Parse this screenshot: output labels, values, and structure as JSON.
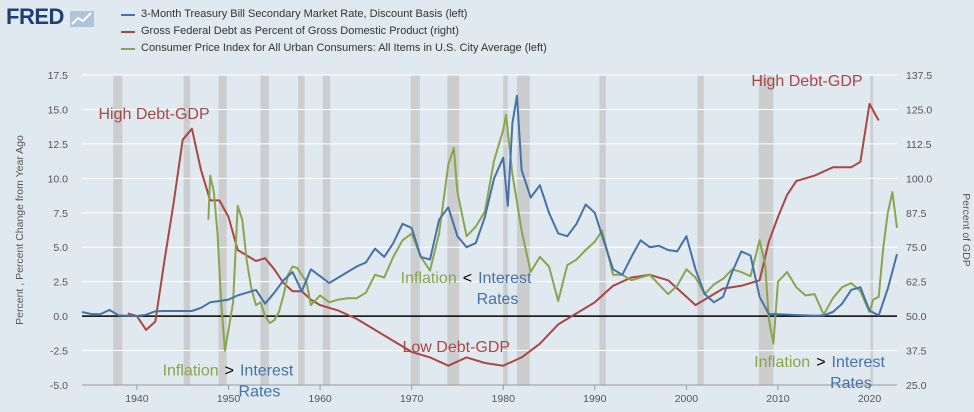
{
  "brand": {
    "logo_text": "FRED"
  },
  "colors": {
    "background": "#e1e9f0",
    "plot": "#e1e9f0",
    "recession": "#c8c8c8",
    "tbill": "#4572a7",
    "debt": "#aa4643",
    "cpi": "#89a54e",
    "zero_line": "#000000"
  },
  "chart_data": {
    "type": "line",
    "xlim": [
      1934,
      2023
    ],
    "ylim_left": [
      -5.0,
      17.5
    ],
    "ylim_right": [
      25.0,
      137.5
    ],
    "x_ticks": [
      "1940",
      "1950",
      "1960",
      "1970",
      "1980",
      "1990",
      "2000",
      "2010",
      "2020"
    ],
    "left_ticks": [
      "17.5",
      "15.0",
      "12.5",
      "10.0",
      "7.5",
      "5.0",
      "2.5",
      "0.0",
      "-2.5",
      "-5.0"
    ],
    "right_ticks": [
      "137.5",
      "125.0",
      "112.5",
      "100.0",
      "87.5",
      "75.0",
      "62.5",
      "50.0",
      "37.5",
      "25.0"
    ],
    "left_label": "Percent , Percent Change from Year Ago",
    "right_label": "Percent of GDP",
    "recessions": [
      [
        1937.4,
        1938.4
      ],
      [
        1945.1,
        1945.8
      ],
      [
        1948.9,
        1949.8
      ],
      [
        1953.5,
        1954.4
      ],
      [
        1957.6,
        1958.3
      ],
      [
        1960.3,
        1961.1
      ],
      [
        1969.9,
        1970.9
      ],
      [
        1973.9,
        1975.2
      ],
      [
        1980.0,
        1980.5
      ],
      [
        1981.5,
        1982.9
      ],
      [
        1990.5,
        1991.2
      ],
      [
        2001.2,
        2001.9
      ],
      [
        2007.9,
        2009.5
      ],
      [
        2020.1,
        2020.4
      ]
    ],
    "series": [
      {
        "name": "3-Month Treasury Bill Secondary Market Rate, Discount Basis (left)",
        "axis": "left",
        "x": [
          1934,
          1935,
          1936,
          1937,
          1938,
          1939,
          1940,
          1941,
          1942,
          1943,
          1944,
          1945,
          1946,
          1947,
          1948,
          1949,
          1950,
          1951,
          1952,
          1953,
          1954,
          1955,
          1956,
          1957,
          1958,
          1959,
          1960,
          1961,
          1962,
          1963,
          1964,
          1965,
          1966,
          1967,
          1968,
          1969,
          1970,
          1971,
          1972,
          1973,
          1974,
          1975,
          1976,
          1977,
          1978,
          1979,
          1980,
          1980.5,
          1981,
          1981.5,
          1982,
          1983,
          1984,
          1985,
          1986,
          1987,
          1988,
          1989,
          1990,
          1991,
          1992,
          1993,
          1994,
          1995,
          1996,
          1997,
          1998,
          1999,
          2000,
          2001,
          2002,
          2003,
          2004,
          2005,
          2006,
          2007,
          2008,
          2009,
          2010,
          2012,
          2014,
          2015,
          2016,
          2017,
          2018,
          2019,
          2020,
          2021,
          2022,
          2023
        ],
        "y": [
          0.3,
          0.15,
          0.14,
          0.45,
          0.05,
          0.02,
          0.01,
          0.1,
          0.35,
          0.37,
          0.37,
          0.37,
          0.37,
          0.6,
          1.0,
          1.1,
          1.2,
          1.5,
          1.7,
          1.9,
          0.9,
          1.7,
          2.6,
          3.2,
          1.8,
          3.4,
          2.9,
          2.4,
          2.8,
          3.2,
          3.6,
          3.9,
          4.9,
          4.3,
          5.3,
          6.7,
          6.4,
          4.3,
          4.1,
          7.0,
          7.9,
          5.8,
          5.0,
          5.3,
          7.2,
          10.0,
          11.5,
          8.0,
          14.0,
          16.0,
          10.6,
          8.6,
          9.5,
          7.5,
          6.0,
          5.8,
          6.7,
          8.1,
          7.5,
          5.4,
          3.4,
          3.0,
          4.3,
          5.5,
          5.0,
          5.1,
          4.8,
          4.7,
          5.8,
          3.4,
          1.6,
          1.0,
          1.4,
          3.2,
          4.7,
          4.4,
          1.4,
          0.15,
          0.13,
          0.08,
          0.03,
          0.05,
          0.3,
          0.9,
          1.9,
          2.1,
          0.4,
          0.05,
          2.0,
          4.5
        ]
      },
      {
        "name": "Gross Federal Debt as Percent of Gross Domestic Product (right)",
        "axis": "right",
        "x": [
          1939,
          1940,
          1941,
          1942,
          1943,
          1944,
          1945,
          1946,
          1947,
          1948,
          1949,
          1950,
          1951,
          1952,
          1953,
          1954,
          1955,
          1956,
          1957,
          1958,
          1959,
          1960,
          1962,
          1964,
          1966,
          1968,
          1970,
          1972,
          1974,
          1976,
          1978,
          1980,
          1982,
          1984,
          1986,
          1988,
          1990,
          1992,
          1994,
          1996,
          1998,
          2000,
          2001,
          2002,
          2004,
          2006,
          2008,
          2009,
          2010,
          2011,
          2012,
          2014,
          2016,
          2018,
          2019,
          2020,
          2021
        ],
        "y": [
          51,
          50,
          45,
          48,
          70,
          91,
          114,
          118,
          103,
          92,
          92,
          86,
          74,
          72,
          70,
          71,
          67,
          62,
          59,
          59,
          56,
          54,
          52,
          49,
          45,
          41,
          37,
          35,
          32,
          35,
          33,
          32,
          35,
          40,
          47,
          51,
          55,
          61,
          64,
          65,
          63,
          57,
          54,
          56,
          60,
          61,
          63,
          77,
          86,
          94,
          99,
          101,
          104,
          104,
          106,
          127,
          121
        ]
      },
      {
        "name": "Consumer Price Index for All Urban Consumers: All Items in U.S. City Average (left)",
        "axis": "left",
        "x": [
          1947.8,
          1948.0,
          1948.4,
          1948.8,
          1949.2,
          1949.6,
          1950.0,
          1950.5,
          1951.0,
          1951.5,
          1952.0,
          1952.5,
          1953.0,
          1953.5,
          1954.0,
          1954.5,
          1955.0,
          1955.5,
          1956.0,
          1956.5,
          1957.0,
          1957.5,
          1958.0,
          1958.5,
          1959.0,
          1960.0,
          1961.0,
          1962.0,
          1963.0,
          1964.0,
          1965.0,
          1966.0,
          1967.0,
          1968.0,
          1969.0,
          1970.0,
          1971.0,
          1972.0,
          1973.0,
          1974.0,
          1974.6,
          1975.0,
          1976.0,
          1977.0,
          1978.0,
          1979.0,
          1980.0,
          1980.3,
          1981.0,
          1982.0,
          1983.0,
          1984.0,
          1985.0,
          1986.0,
          1987.0,
          1988.0,
          1989.0,
          1990.0,
          1990.8,
          1992.0,
          1993.0,
          1994.0,
          1995.0,
          1996.0,
          1997.0,
          1998.0,
          1999.0,
          2000.0,
          2001.0,
          2002.0,
          2003.0,
          2004.0,
          2005.0,
          2006.0,
          2007.0,
          2008.0,
          2008.6,
          2009.0,
          2009.5,
          2010.0,
          2011.0,
          2012.0,
          2013.0,
          2014.0,
          2015.0,
          2016.0,
          2017.0,
          2018.0,
          2019.0,
          2020.0,
          2020.4,
          2021.0,
          2021.5,
          2022.0,
          2022.5,
          2023.0
        ],
        "y": [
          7.0,
          10.2,
          9.0,
          6.0,
          1.0,
          -2.5,
          -1.0,
          1.0,
          8.0,
          7.0,
          4.0,
          2.0,
          0.8,
          1.0,
          0.0,
          -0.5,
          -0.3,
          0.3,
          1.5,
          3.0,
          3.6,
          3.5,
          3.0,
          2.5,
          0.8,
          1.5,
          1.0,
          1.2,
          1.3,
          1.3,
          1.7,
          3.0,
          2.8,
          4.3,
          5.5,
          6.0,
          4.3,
          3.3,
          6.0,
          11.0,
          12.2,
          9.0,
          5.8,
          6.5,
          7.6,
          11.3,
          13.5,
          14.6,
          10.3,
          6.2,
          3.2,
          4.3,
          3.6,
          1.1,
          3.7,
          4.1,
          4.8,
          5.4,
          6.2,
          3.0,
          3.0,
          2.6,
          2.8,
          3.0,
          2.3,
          1.6,
          2.2,
          3.4,
          2.8,
          1.6,
          2.3,
          2.7,
          3.4,
          3.2,
          2.9,
          5.5,
          3.8,
          -0.2,
          -2.0,
          2.5,
          3.2,
          2.1,
          1.5,
          1.6,
          0.1,
          1.3,
          2.1,
          2.4,
          1.8,
          0.3,
          1.2,
          1.4,
          5.0,
          7.5,
          9.0,
          6.4
        ]
      }
    ],
    "annotations": [
      {
        "text": "High Debt-GDP",
        "x": 1935.8,
        "y": 14.3,
        "color": "#aa4643"
      },
      {
        "text": "High Debt-GDP",
        "x": 2007.1,
        "y": 16.7,
        "color": "#aa4643"
      },
      {
        "text": "Low Debt-GDP",
        "x": 1969.0,
        "y": -2.6,
        "color": "#aa4643"
      }
    ]
  },
  "callouts": [
    {
      "left": "Inflation",
      "op": "<",
      "right": "Interest",
      "sub": "Rates",
      "x": 1968.8,
      "y": 2.4
    },
    {
      "left": "Inflation",
      "op": ">",
      "right": "Interest",
      "sub": "Rates",
      "x": 1942.8,
      "y": -4.3
    },
    {
      "left": "Inflation",
      "op": ">",
      "right": "Interest",
      "sub": "Rates",
      "x": 2007.4,
      "y": -3.7
    }
  ]
}
